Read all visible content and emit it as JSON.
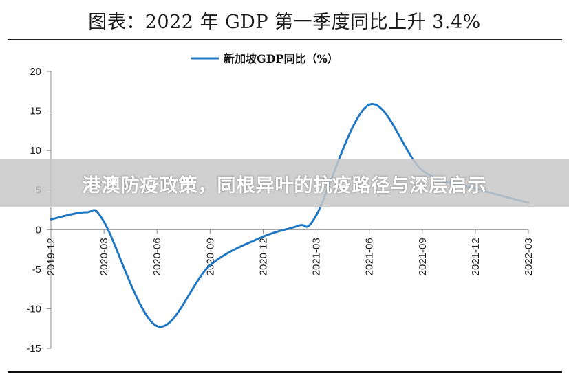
{
  "page": {
    "title": "图表：2022 年 GDP 第一季度同比上升 3.4%",
    "overlay_banner": "港澳防疫政策，同根异叶的抗疫路径与深层启示"
  },
  "chart_data": {
    "type": "line",
    "series": [
      {
        "name": "新加坡GDP同比（%）",
        "color": "#1f77c4",
        "x": [
          "2019-12",
          "2020-02",
          "2020-03",
          "2020-06",
          "2020-09",
          "2020-12",
          "2021-02",
          "2021-03",
          "2021-06",
          "2021-09",
          "2021-12",
          "2022-03"
        ],
        "values": [
          1.3,
          2.2,
          1.0,
          -12.2,
          -4.5,
          -0.9,
          0.5,
          1.8,
          15.8,
          7.5,
          5.2,
          3.4
        ]
      }
    ],
    "categories": [
      "2019-12",
      "2020-03",
      "2020-06",
      "2020-09",
      "2020-12",
      "2021-03",
      "2021-06",
      "2021-09",
      "2021-12",
      "2022-03"
    ],
    "y_ticks": [
      "20",
      "15",
      "10",
      "5",
      "0",
      "-5",
      "-10",
      "-15"
    ],
    "ylim": [
      -15,
      20
    ],
    "legend_position": "top",
    "grid": false
  }
}
